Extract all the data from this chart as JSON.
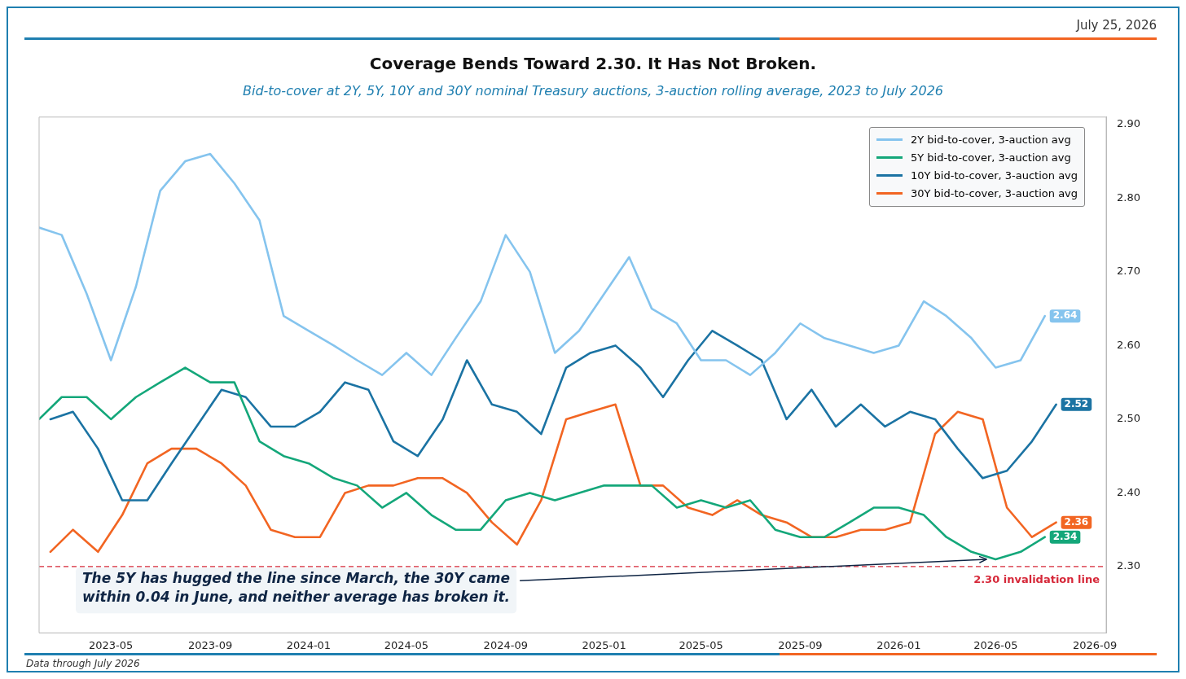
{
  "chart_data": {
    "type": "line",
    "title": "Coverage Bends Toward 2.30. It Has Not Broken.",
    "subtitle": "Bid-to-cover at 2Y, 5Y, 10Y and 30Y nominal Treasury auctions, 3-auction rolling average, 2023 to July 2026",
    "x": [
      "2023-02",
      "2023-03",
      "2023-04",
      "2023-05",
      "2023-06",
      "2023-07",
      "2023-08",
      "2023-09",
      "2023-10",
      "2023-11",
      "2023-12",
      "2024-01",
      "2024-02",
      "2024-03",
      "2024-04",
      "2024-05",
      "2024-06",
      "2024-07",
      "2024-08",
      "2024-09",
      "2024-10",
      "2024-11",
      "2024-12",
      "2025-01",
      "2025-02",
      "2025-03",
      "2025-04",
      "2025-05",
      "2025-06",
      "2025-07",
      "2025-08",
      "2025-09",
      "2025-10",
      "2025-11",
      "2025-12",
      "2026-01",
      "2026-02",
      "2026-03",
      "2026-04",
      "2026-05",
      "2026-06",
      "2026-07"
    ],
    "series": [
      {
        "name": "2Y bid-to-cover, 3-auction avg",
        "color": "#85c4ee",
        "values": [
          2.76,
          2.75,
          2.67,
          2.58,
          2.68,
          2.81,
          2.85,
          2.86,
          2.82,
          2.77,
          2.64,
          2.62,
          2.6,
          2.58,
          2.56,
          2.59,
          2.56,
          2.61,
          2.66,
          2.75,
          2.7,
          2.59,
          2.62,
          2.67,
          2.72,
          2.65,
          2.63,
          2.58,
          2.58,
          2.56,
          2.59,
          2.63,
          2.61,
          2.6,
          2.59,
          2.6,
          2.66,
          2.64,
          2.61,
          2.57,
          2.58,
          2.64
        ],
        "value_labels": [
          null,
          null,
          null,
          null,
          null,
          null,
          null,
          null,
          null,
          null,
          null,
          null,
          null,
          null,
          null,
          null,
          null,
          null,
          null,
          null,
          null,
          null,
          null,
          null,
          null,
          null,
          null,
          null,
          null,
          null,
          null,
          null,
          null,
          null,
          null,
          null,
          null,
          null,
          null,
          null,
          null,
          "2.64"
        ]
      },
      {
        "name": "5Y bid-to-cover, 3-auction avg",
        "color": "#14a77a",
        "values": [
          2.5,
          2.53,
          2.53,
          2.5,
          2.53,
          2.55,
          2.57,
          2.55,
          2.55,
          2.47,
          2.45,
          2.44,
          2.42,
          2.41,
          2.38,
          2.4,
          2.37,
          2.35,
          2.35,
          2.39,
          2.4,
          2.39,
          2.4,
          2.41,
          2.41,
          2.41,
          2.38,
          2.39,
          2.38,
          2.39,
          2.35,
          2.34,
          2.34,
          2.36,
          2.38,
          2.38,
          2.37,
          2.34,
          2.32,
          2.31,
          2.32,
          2.34
        ],
        "value_labels": [
          null,
          null,
          null,
          null,
          null,
          null,
          null,
          null,
          null,
          null,
          null,
          null,
          null,
          null,
          null,
          null,
          null,
          null,
          null,
          null,
          null,
          null,
          null,
          null,
          null,
          null,
          null,
          null,
          null,
          null,
          null,
          null,
          null,
          null,
          null,
          null,
          null,
          null,
          null,
          null,
          null,
          "2.34"
        ]
      },
      {
        "name": "10Y bid-to-cover, 3-auction avg",
        "color": "#1b73a3",
        "x": [
          "2023-02-15",
          "2023-03-15",
          "2023-04-15",
          "2023-05-15",
          "2023-06-15",
          "2023-07-15",
          "2023-08-15",
          "2023-09-15",
          "2023-10-15",
          "2023-11-15",
          "2023-12-15",
          "2024-01-15",
          "2024-02-15",
          "2024-03-15",
          "2024-04-15",
          "2024-05-15",
          "2024-06-15",
          "2024-07-15",
          "2024-08-15",
          "2024-09-15",
          "2024-10-15",
          "2024-11-15",
          "2024-12-15",
          "2025-01-15",
          "2025-02-15",
          "2025-03-15",
          "2025-04-15",
          "2025-05-15",
          "2025-06-15",
          "2025-07-15",
          "2025-08-15",
          "2025-09-15",
          "2025-10-15",
          "2025-11-15",
          "2025-12-15",
          "2026-01-15",
          "2026-02-15",
          "2026-03-15",
          "2026-04-15",
          "2026-05-15",
          "2026-06-15",
          "2026-07-15"
        ],
        "values": [
          2.5,
          2.51,
          2.46,
          2.39,
          2.39,
          2.44,
          2.49,
          2.54,
          2.53,
          2.49,
          2.49,
          2.51,
          2.55,
          2.54,
          2.47,
          2.45,
          2.5,
          2.58,
          2.52,
          2.51,
          2.48,
          2.57,
          2.59,
          2.6,
          2.57,
          2.53,
          2.58,
          2.62,
          2.6,
          2.58,
          2.5,
          2.54,
          2.49,
          2.52,
          2.49,
          2.51,
          2.5,
          2.46,
          2.42,
          2.43,
          2.47,
          2.52
        ],
        "value_labels": [
          null,
          null,
          null,
          null,
          null,
          null,
          null,
          null,
          null,
          null,
          null,
          null,
          null,
          null,
          null,
          null,
          null,
          null,
          null,
          null,
          null,
          null,
          null,
          null,
          null,
          null,
          null,
          null,
          null,
          null,
          null,
          null,
          null,
          null,
          null,
          null,
          null,
          null,
          null,
          null,
          null,
          "2.52"
        ]
      },
      {
        "name": "30Y bid-to-cover, 3-auction avg",
        "color": "#f26522",
        "x": [
          "2023-02-15",
          "2023-03-15",
          "2023-04-15",
          "2023-05-15",
          "2023-06-15",
          "2023-07-15",
          "2023-08-15",
          "2023-09-15",
          "2023-10-15",
          "2023-11-15",
          "2023-12-15",
          "2024-01-15",
          "2024-02-15",
          "2024-03-15",
          "2024-04-15",
          "2024-05-15",
          "2024-06-15",
          "2024-07-15",
          "2024-08-15",
          "2024-09-15",
          "2024-10-15",
          "2024-11-15",
          "2024-12-15",
          "2025-01-15",
          "2025-02-15",
          "2025-03-15",
          "2025-04-15",
          "2025-05-15",
          "2025-06-15",
          "2025-07-15",
          "2025-08-15",
          "2025-09-15",
          "2025-10-15",
          "2025-11-15",
          "2025-12-15",
          "2026-01-15",
          "2026-02-15",
          "2026-03-15",
          "2026-04-15",
          "2026-05-15",
          "2026-06-15",
          "2026-07-15"
        ],
        "values": [
          2.32,
          2.35,
          2.32,
          2.37,
          2.44,
          2.46,
          2.46,
          2.44,
          2.41,
          2.35,
          2.34,
          2.34,
          2.4,
          2.41,
          2.41,
          2.42,
          2.42,
          2.4,
          2.36,
          2.33,
          2.39,
          2.5,
          2.51,
          2.52,
          2.41,
          2.41,
          2.38,
          2.37,
          2.39,
          2.37,
          2.36,
          2.34,
          2.34,
          2.35,
          2.35,
          2.36,
          2.48,
          2.51,
          2.5,
          2.38,
          2.34,
          2.36
        ],
        "value_labels": [
          null,
          null,
          null,
          null,
          null,
          null,
          null,
          null,
          null,
          null,
          null,
          null,
          null,
          null,
          null,
          null,
          null,
          null,
          null,
          null,
          null,
          null,
          null,
          null,
          null,
          null,
          null,
          null,
          null,
          null,
          null,
          null,
          null,
          null,
          null,
          null,
          null,
          null,
          null,
          null,
          null,
          "2.36"
        ]
      }
    ],
    "xlim": [
      "2023-02",
      "2026-09-15"
    ],
    "xticks": [
      "2023-05",
      "2023-09",
      "2024-01",
      "2024-05",
      "2024-09",
      "2025-01",
      "2025-05",
      "2025-09",
      "2026-01",
      "2026-05",
      "2026-09"
    ],
    "ylim": [
      2.21,
      2.91
    ],
    "yticks": [
      {
        "value": 2.3,
        "label": "2.30"
      },
      {
        "value": 2.4,
        "label": "2.40"
      },
      {
        "value": 2.5,
        "label": "2.50"
      },
      {
        "value": 2.6,
        "label": "2.60"
      },
      {
        "value": 2.7,
        "label": "2.70"
      },
      {
        "value": 2.8,
        "label": "2.80"
      },
      {
        "value": 2.9,
        "label": "2.90"
      }
    ],
    "ref_lines": [
      {
        "axis": "y",
        "value": 2.3,
        "label": "2.30 invalidation line",
        "color": "#d62839",
        "line_style": "dashed"
      }
    ],
    "annotations": [
      {
        "text": "The 5Y has hugged the line since March, the 30Y came within 0.04 in June, and neither average has broken it.",
        "x": "2026-04-20",
        "y": 2.31
      },
      "July 25, 2026",
      "Data through July 2026"
    ],
    "legend": "top right",
    "marker": "none",
    "line_style": "solid"
  }
}
